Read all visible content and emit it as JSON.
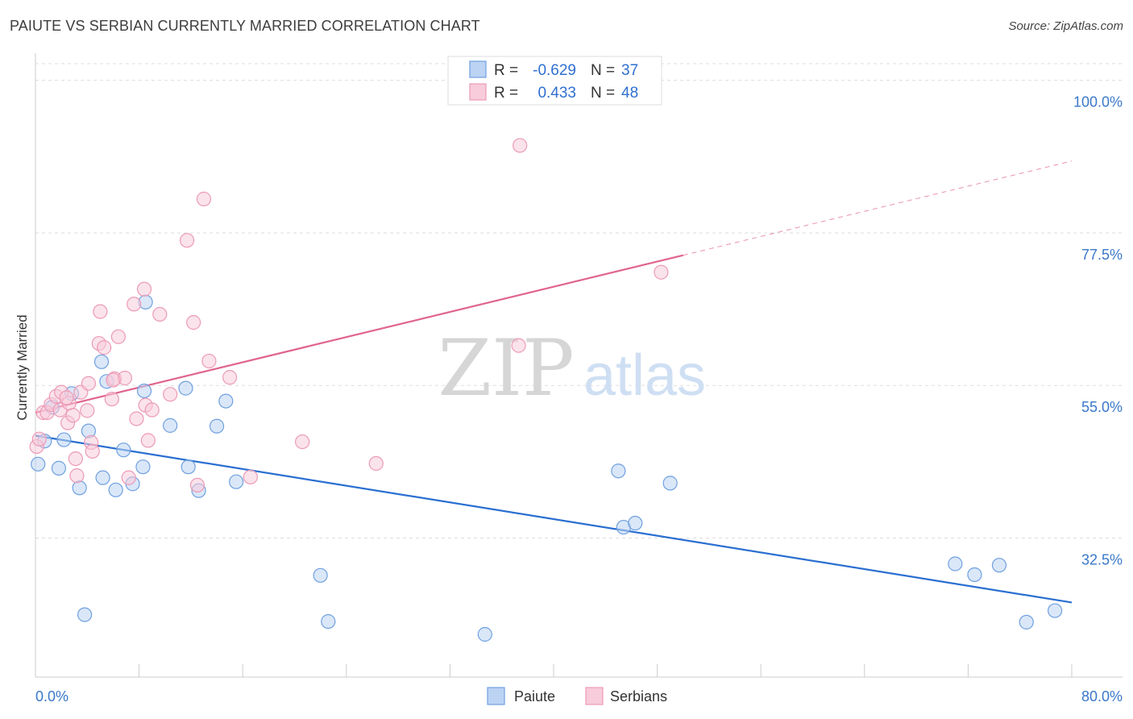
{
  "title": "PAIUTE VS SERBIAN CURRENTLY MARRIED CORRELATION CHART",
  "source": "Source: ZipAtlas.com",
  "watermark": {
    "zip": "ZIP",
    "atlas": "atlas"
  },
  "chart_data": {
    "type": "scatter",
    "title": "PAIUTE VS SERBIAN CURRENTLY MARRIED CORRELATION CHART",
    "xlabel": "",
    "ylabel": "Currently Married",
    "xlim": [
      0,
      80
    ],
    "ylim": [
      12,
      104
    ],
    "x_tick_labels": [
      "0.0%",
      "80.0%"
    ],
    "y_ticks": [
      32.5,
      55.0,
      77.5,
      100.0
    ],
    "y_tick_labels": [
      "32.5%",
      "55.0%",
      "77.5%",
      "100.0%"
    ],
    "grid": true,
    "legend_position": "top-center",
    "series": [
      {
        "name": "Paiute",
        "color": "#6fa0e0",
        "fill": "#bcd3f3",
        "line_color": "#2a6fd1",
        "R": "-0.629",
        "N": "37",
        "trend": {
          "x": [
            0,
            80
          ],
          "y": [
            47.6,
            23.0
          ]
        },
        "points": [
          [
            0.2,
            43.4
          ],
          [
            0.7,
            46.8
          ],
          [
            2.2,
            47.0
          ],
          [
            1.8,
            42.8
          ],
          [
            2.8,
            53.8
          ],
          [
            3.4,
            39.9
          ],
          [
            4.1,
            48.3
          ],
          [
            3.8,
            21.2
          ],
          [
            5.2,
            41.4
          ],
          [
            5.1,
            58.5
          ],
          [
            5.5,
            55.6
          ],
          [
            6.2,
            39.6
          ],
          [
            6.8,
            45.5
          ],
          [
            7.5,
            40.5
          ],
          [
            8.3,
            43.0
          ],
          [
            8.4,
            54.2
          ],
          [
            8.5,
            67.3
          ],
          [
            10.4,
            49.1
          ],
          [
            11.6,
            54.6
          ],
          [
            11.8,
            43.0
          ],
          [
            12.6,
            39.5
          ],
          [
            14.0,
            49.0
          ],
          [
            14.7,
            52.7
          ],
          [
            15.5,
            40.8
          ],
          [
            22.0,
            27.0
          ],
          [
            22.6,
            20.2
          ],
          [
            34.7,
            18.3
          ],
          [
            45.0,
            42.4
          ],
          [
            45.4,
            34.1
          ],
          [
            46.3,
            34.7
          ],
          [
            49.0,
            40.6
          ],
          [
            71.0,
            28.7
          ],
          [
            72.5,
            27.1
          ],
          [
            74.4,
            28.5
          ],
          [
            76.5,
            20.1
          ],
          [
            78.7,
            21.8
          ],
          [
            1.3,
            51.8
          ]
        ]
      },
      {
        "name": "Serbians",
        "color": "#ec9ab6",
        "fill": "#f8ccda",
        "line_color": "#e0648f",
        "R": "0.433",
        "N": "48",
        "trend": {
          "x": [
            0,
            50
          ],
          "y": [
            51.0,
            74.2
          ]
        },
        "trend_dashed": {
          "x": [
            50,
            80
          ],
          "y": [
            74.2,
            88.1
          ]
        },
        "points": [
          [
            0.1,
            46.0
          ],
          [
            0.6,
            51.0
          ],
          [
            0.9,
            51.0
          ],
          [
            1.2,
            52.2
          ],
          [
            1.6,
            53.4
          ],
          [
            1.9,
            51.4
          ],
          [
            2.0,
            54.0
          ],
          [
            2.5,
            49.5
          ],
          [
            2.6,
            52.4
          ],
          [
            2.9,
            50.6
          ],
          [
            3.1,
            44.2
          ],
          [
            3.2,
            41.7
          ],
          [
            3.5,
            54.0
          ],
          [
            4.0,
            51.3
          ],
          [
            4.1,
            55.3
          ],
          [
            4.3,
            46.6
          ],
          [
            4.4,
            45.3
          ],
          [
            4.9,
            61.2
          ],
          [
            5.0,
            65.9
          ],
          [
            5.3,
            60.6
          ],
          [
            5.9,
            53.0
          ],
          [
            6.1,
            56.0
          ],
          [
            6.4,
            62.2
          ],
          [
            6.9,
            56.1
          ],
          [
            7.2,
            41.4
          ],
          [
            7.6,
            67.0
          ],
          [
            7.8,
            50.1
          ],
          [
            8.4,
            69.2
          ],
          [
            8.5,
            52.1
          ],
          [
            8.7,
            46.9
          ],
          [
            9.0,
            51.4
          ],
          [
            9.6,
            65.5
          ],
          [
            10.4,
            53.7
          ],
          [
            11.7,
            76.4
          ],
          [
            12.2,
            64.3
          ],
          [
            12.5,
            40.3
          ],
          [
            13.0,
            82.5
          ],
          [
            13.4,
            58.6
          ],
          [
            15.0,
            56.2
          ],
          [
            16.6,
            41.5
          ],
          [
            20.6,
            46.7
          ],
          [
            26.3,
            43.5
          ],
          [
            37.3,
            60.9
          ],
          [
            37.4,
            90.4
          ],
          [
            48.3,
            71.7
          ],
          [
            0.3,
            47.1
          ],
          [
            2.4,
            53.2
          ],
          [
            6.0,
            55.8
          ]
        ]
      }
    ]
  }
}
